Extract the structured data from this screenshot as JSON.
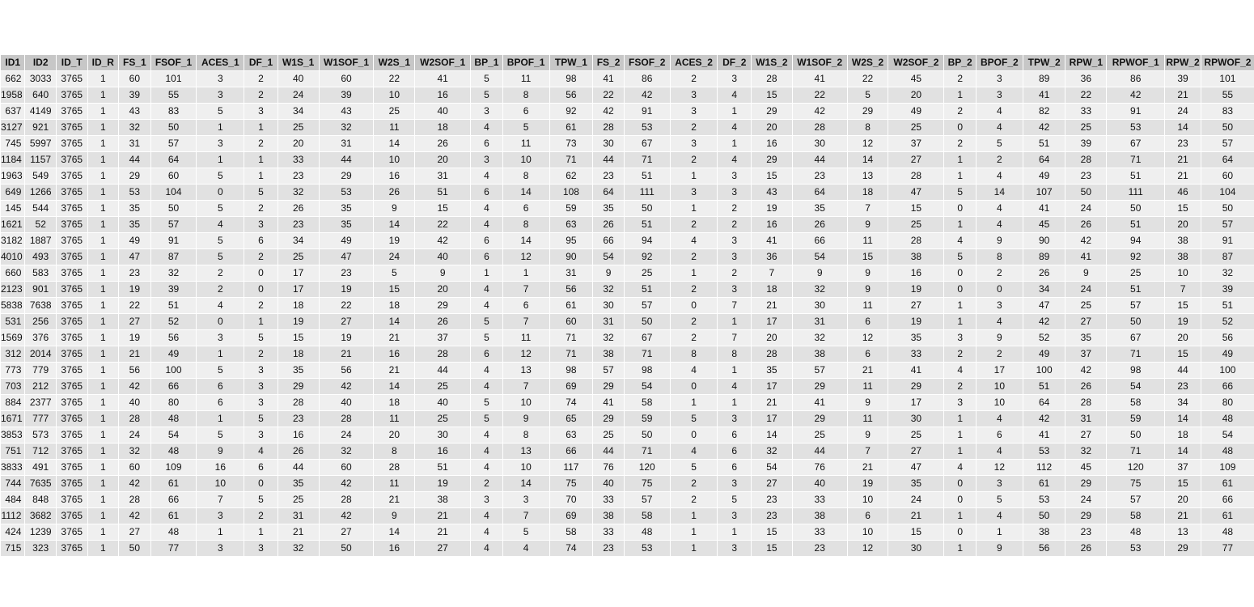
{
  "table": {
    "columns": [
      "ID1",
      "ID2",
      "ID_T",
      "ID_R",
      "FS_1",
      "FSOF_1",
      "ACES_1",
      "DF_1",
      "W1S_1",
      "W1SOF_1",
      "W2S_1",
      "W2SOF_1",
      "BP_1",
      "BPOF_1",
      "TPW_1",
      "FS_2",
      "FSOF_2",
      "ACES_2",
      "DF_2",
      "W1S_2",
      "W1SOF_2",
      "W2S_2",
      "W2SOF_2",
      "BP_2",
      "BPOF_2",
      "TPW_2",
      "RPW_1",
      "RPWOF_1",
      "RPW_2",
      "RPWOF_2"
    ],
    "rows": [
      [
        "662",
        "3033",
        "3765",
        "1",
        "60",
        "101",
        "3",
        "2",
        "40",
        "60",
        "22",
        "41",
        "5",
        "11",
        "98",
        "41",
        "86",
        "2",
        "3",
        "28",
        "41",
        "22",
        "45",
        "2",
        "3",
        "89",
        "36",
        "86",
        "39",
        "101"
      ],
      [
        "1958",
        "640",
        "3765",
        "1",
        "39",
        "55",
        "3",
        "2",
        "24",
        "39",
        "10",
        "16",
        "5",
        "8",
        "56",
        "22",
        "42",
        "3",
        "4",
        "15",
        "22",
        "5",
        "20",
        "1",
        "3",
        "41",
        "22",
        "42",
        "21",
        "55"
      ],
      [
        "637",
        "4149",
        "3765",
        "1",
        "43",
        "83",
        "5",
        "3",
        "34",
        "43",
        "25",
        "40",
        "3",
        "6",
        "92",
        "42",
        "91",
        "3",
        "1",
        "29",
        "42",
        "29",
        "49",
        "2",
        "4",
        "82",
        "33",
        "91",
        "24",
        "83"
      ],
      [
        "3127",
        "921",
        "3765",
        "1",
        "32",
        "50",
        "1",
        "1",
        "25",
        "32",
        "11",
        "18",
        "4",
        "5",
        "61",
        "28",
        "53",
        "2",
        "4",
        "20",
        "28",
        "8",
        "25",
        "0",
        "4",
        "42",
        "25",
        "53",
        "14",
        "50"
      ],
      [
        "745",
        "5997",
        "3765",
        "1",
        "31",
        "57",
        "3",
        "2",
        "20",
        "31",
        "14",
        "26",
        "6",
        "11",
        "73",
        "30",
        "67",
        "3",
        "1",
        "16",
        "30",
        "12",
        "37",
        "2",
        "5",
        "51",
        "39",
        "67",
        "23",
        "57"
      ],
      [
        "1184",
        "1157",
        "3765",
        "1",
        "44",
        "64",
        "1",
        "1",
        "33",
        "44",
        "10",
        "20",
        "3",
        "10",
        "71",
        "44",
        "71",
        "2",
        "4",
        "29",
        "44",
        "14",
        "27",
        "1",
        "2",
        "64",
        "28",
        "71",
        "21",
        "64"
      ],
      [
        "1963",
        "549",
        "3765",
        "1",
        "29",
        "60",
        "5",
        "1",
        "23",
        "29",
        "16",
        "31",
        "4",
        "8",
        "62",
        "23",
        "51",
        "1",
        "3",
        "15",
        "23",
        "13",
        "28",
        "1",
        "4",
        "49",
        "23",
        "51",
        "21",
        "60"
      ],
      [
        "649",
        "1266",
        "3765",
        "1",
        "53",
        "104",
        "0",
        "5",
        "32",
        "53",
        "26",
        "51",
        "6",
        "14",
        "108",
        "64",
        "111",
        "3",
        "3",
        "43",
        "64",
        "18",
        "47",
        "5",
        "14",
        "107",
        "50",
        "111",
        "46",
        "104"
      ],
      [
        "145",
        "544",
        "3765",
        "1",
        "35",
        "50",
        "5",
        "2",
        "26",
        "35",
        "9",
        "15",
        "4",
        "6",
        "59",
        "35",
        "50",
        "1",
        "2",
        "19",
        "35",
        "7",
        "15",
        "0",
        "4",
        "41",
        "24",
        "50",
        "15",
        "50"
      ],
      [
        "1621",
        "52",
        "3765",
        "1",
        "35",
        "57",
        "4",
        "3",
        "23",
        "35",
        "14",
        "22",
        "4",
        "8",
        "63",
        "26",
        "51",
        "2",
        "2",
        "16",
        "26",
        "9",
        "25",
        "1",
        "4",
        "45",
        "26",
        "51",
        "20",
        "57"
      ],
      [
        "3182",
        "1887",
        "3765",
        "1",
        "49",
        "91",
        "5",
        "6",
        "34",
        "49",
        "19",
        "42",
        "6",
        "14",
        "95",
        "66",
        "94",
        "4",
        "3",
        "41",
        "66",
        "11",
        "28",
        "4",
        "9",
        "90",
        "42",
        "94",
        "38",
        "91"
      ],
      [
        "4010",
        "493",
        "3765",
        "1",
        "47",
        "87",
        "5",
        "2",
        "25",
        "47",
        "24",
        "40",
        "6",
        "12",
        "90",
        "54",
        "92",
        "2",
        "3",
        "36",
        "54",
        "15",
        "38",
        "5",
        "8",
        "89",
        "41",
        "92",
        "38",
        "87"
      ],
      [
        "660",
        "583",
        "3765",
        "1",
        "23",
        "32",
        "2",
        "0",
        "17",
        "23",
        "5",
        "9",
        "1",
        "1",
        "31",
        "9",
        "25",
        "1",
        "2",
        "7",
        "9",
        "9",
        "16",
        "0",
        "2",
        "26",
        "9",
        "25",
        "10",
        "32"
      ],
      [
        "2123",
        "901",
        "3765",
        "1",
        "19",
        "39",
        "2",
        "0",
        "17",
        "19",
        "15",
        "20",
        "4",
        "7",
        "56",
        "32",
        "51",
        "2",
        "3",
        "18",
        "32",
        "9",
        "19",
        "0",
        "0",
        "34",
        "24",
        "51",
        "7",
        "39"
      ],
      [
        "5838",
        "7638",
        "3765",
        "1",
        "22",
        "51",
        "4",
        "2",
        "18",
        "22",
        "18",
        "29",
        "4",
        "6",
        "61",
        "30",
        "57",
        "0",
        "7",
        "21",
        "30",
        "11",
        "27",
        "1",
        "3",
        "47",
        "25",
        "57",
        "15",
        "51"
      ],
      [
        "531",
        "256",
        "3765",
        "1",
        "27",
        "52",
        "0",
        "1",
        "19",
        "27",
        "14",
        "26",
        "5",
        "7",
        "60",
        "31",
        "50",
        "2",
        "1",
        "17",
        "31",
        "6",
        "19",
        "1",
        "4",
        "42",
        "27",
        "50",
        "19",
        "52"
      ],
      [
        "1569",
        "376",
        "3765",
        "1",
        "19",
        "56",
        "3",
        "5",
        "15",
        "19",
        "21",
        "37",
        "5",
        "11",
        "71",
        "32",
        "67",
        "2",
        "7",
        "20",
        "32",
        "12",
        "35",
        "3",
        "9",
        "52",
        "35",
        "67",
        "20",
        "56"
      ],
      [
        "312",
        "2014",
        "3765",
        "1",
        "21",
        "49",
        "1",
        "2",
        "18",
        "21",
        "16",
        "28",
        "6",
        "12",
        "71",
        "38",
        "71",
        "8",
        "8",
        "28",
        "38",
        "6",
        "33",
        "2",
        "2",
        "49",
        "37",
        "71",
        "15",
        "49"
      ],
      [
        "773",
        "779",
        "3765",
        "1",
        "56",
        "100",
        "5",
        "3",
        "35",
        "56",
        "21",
        "44",
        "4",
        "13",
        "98",
        "57",
        "98",
        "4",
        "1",
        "35",
        "57",
        "21",
        "41",
        "4",
        "17",
        "100",
        "42",
        "98",
        "44",
        "100"
      ],
      [
        "703",
        "212",
        "3765",
        "1",
        "42",
        "66",
        "6",
        "3",
        "29",
        "42",
        "14",
        "25",
        "4",
        "7",
        "69",
        "29",
        "54",
        "0",
        "4",
        "17",
        "29",
        "11",
        "29",
        "2",
        "10",
        "51",
        "26",
        "54",
        "23",
        "66"
      ],
      [
        "884",
        "2377",
        "3765",
        "1",
        "40",
        "80",
        "6",
        "3",
        "28",
        "40",
        "18",
        "40",
        "5",
        "10",
        "74",
        "41",
        "58",
        "1",
        "1",
        "21",
        "41",
        "9",
        "17",
        "3",
        "10",
        "64",
        "28",
        "58",
        "34",
        "80"
      ],
      [
        "1671",
        "777",
        "3765",
        "1",
        "28",
        "48",
        "1",
        "5",
        "23",
        "28",
        "11",
        "25",
        "5",
        "9",
        "65",
        "29",
        "59",
        "5",
        "3",
        "17",
        "29",
        "11",
        "30",
        "1",
        "4",
        "42",
        "31",
        "59",
        "14",
        "48"
      ],
      [
        "3853",
        "573",
        "3765",
        "1",
        "24",
        "54",
        "5",
        "3",
        "16",
        "24",
        "20",
        "30",
        "4",
        "8",
        "63",
        "25",
        "50",
        "0",
        "6",
        "14",
        "25",
        "9",
        "25",
        "1",
        "6",
        "41",
        "27",
        "50",
        "18",
        "54"
      ],
      [
        "751",
        "712",
        "3765",
        "1",
        "32",
        "48",
        "9",
        "4",
        "26",
        "32",
        "8",
        "16",
        "4",
        "13",
        "66",
        "44",
        "71",
        "4",
        "6",
        "32",
        "44",
        "7",
        "27",
        "1",
        "4",
        "53",
        "32",
        "71",
        "14",
        "48"
      ],
      [
        "3833",
        "491",
        "3765",
        "1",
        "60",
        "109",
        "16",
        "6",
        "44",
        "60",
        "28",
        "51",
        "4",
        "10",
        "117",
        "76",
        "120",
        "5",
        "6",
        "54",
        "76",
        "21",
        "47",
        "4",
        "12",
        "112",
        "45",
        "120",
        "37",
        "109"
      ],
      [
        "744",
        "7635",
        "3765",
        "1",
        "42",
        "61",
        "10",
        "0",
        "35",
        "42",
        "11",
        "19",
        "2",
        "14",
        "75",
        "40",
        "75",
        "2",
        "3",
        "27",
        "40",
        "19",
        "35",
        "0",
        "3",
        "61",
        "29",
        "75",
        "15",
        "61"
      ],
      [
        "484",
        "848",
        "3765",
        "1",
        "28",
        "66",
        "7",
        "5",
        "25",
        "28",
        "21",
        "38",
        "3",
        "3",
        "70",
        "33",
        "57",
        "2",
        "5",
        "23",
        "33",
        "10",
        "24",
        "0",
        "5",
        "53",
        "24",
        "57",
        "20",
        "66"
      ],
      [
        "1112",
        "3682",
        "3765",
        "1",
        "42",
        "61",
        "3",
        "2",
        "31",
        "42",
        "9",
        "21",
        "4",
        "7",
        "69",
        "38",
        "58",
        "1",
        "3",
        "23",
        "38",
        "6",
        "21",
        "1",
        "4",
        "50",
        "29",
        "58",
        "21",
        "61"
      ],
      [
        "424",
        "1239",
        "3765",
        "1",
        "27",
        "48",
        "1",
        "1",
        "21",
        "27",
        "14",
        "21",
        "4",
        "5",
        "58",
        "33",
        "48",
        "1",
        "1",
        "15",
        "33",
        "10",
        "15",
        "0",
        "1",
        "38",
        "23",
        "48",
        "13",
        "48"
      ],
      [
        "715",
        "323",
        "3765",
        "1",
        "50",
        "77",
        "3",
        "3",
        "32",
        "50",
        "16",
        "27",
        "4",
        "4",
        "74",
        "23",
        "53",
        "1",
        "3",
        "15",
        "23",
        "12",
        "30",
        "1",
        "9",
        "56",
        "26",
        "53",
        "29",
        "77"
      ]
    ]
  }
}
